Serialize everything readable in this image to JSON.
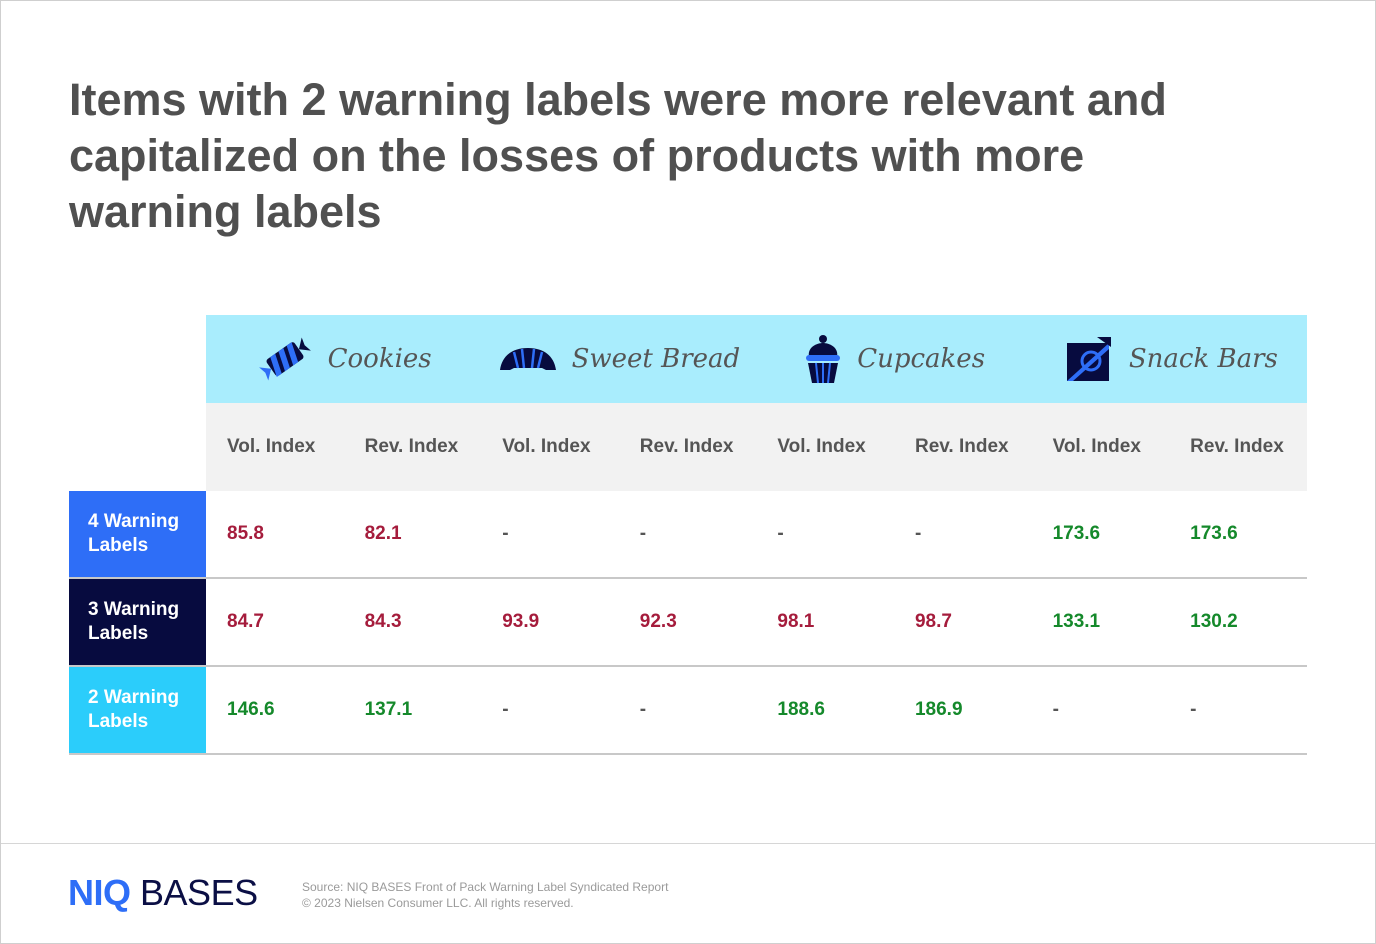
{
  "title": "Items with 2 warning labels were more relevant and capitalized on the losses of products with more warning labels",
  "colors": {
    "header_bg": "#a9edfd",
    "subheader_bg": "#f2f2f2",
    "negative": "#a51c3c",
    "positive": "#15892b",
    "neutral": "#555555",
    "row_4": "#2e6ef7",
    "row_3": "#070b3f",
    "row_2": "#2bcdfb"
  },
  "chart_data": {
    "type": "table",
    "categories": [
      {
        "label": "Cookies",
        "icon": "candy-icon"
      },
      {
        "label": "Sweet Bread",
        "icon": "croissant-icon"
      },
      {
        "label": "Cupcakes",
        "icon": "cupcake-icon"
      },
      {
        "label": "Snack Bars",
        "icon": "snack-bar-icon"
      }
    ],
    "columns": [
      "Vol. Index",
      "Rev. Index",
      "Vol. Index",
      "Rev. Index",
      "Vol. Index",
      "Rev. Index",
      "Vol. Index",
      "Rev. Index"
    ],
    "rows": [
      {
        "label": "4 Warning Labels",
        "color": "#2e6ef7",
        "values": [
          "85.8",
          "82.1",
          "-",
          "-",
          "-",
          "-",
          "173.6",
          "173.6"
        ],
        "tones": [
          "neg",
          "neg",
          "na",
          "na",
          "na",
          "na",
          "pos",
          "pos"
        ]
      },
      {
        "label": "3 Warning Labels",
        "color": "#070b3f",
        "values": [
          "84.7",
          "84.3",
          "93.9",
          "92.3",
          "98.1",
          "98.7",
          "133.1",
          "130.2"
        ],
        "tones": [
          "neg",
          "neg",
          "neg",
          "neg",
          "neg",
          "neg",
          "pos",
          "pos"
        ]
      },
      {
        "label": "2 Warning Labels",
        "color": "#2bcdfb",
        "values": [
          "146.6",
          "137.1",
          "-",
          "-",
          "188.6",
          "186.9",
          "-",
          "-"
        ],
        "tones": [
          "pos",
          "pos",
          "na",
          "na",
          "pos",
          "pos",
          "na",
          "na"
        ]
      }
    ]
  },
  "footer": {
    "logo_niq": "NIQ",
    "logo_bases": "BASES",
    "source": "Source: NIQ BASES Front of Pack Warning Label Syndicated Report",
    "copyright": "© 2023 Nielsen Consumer LLC. All rights reserved."
  }
}
